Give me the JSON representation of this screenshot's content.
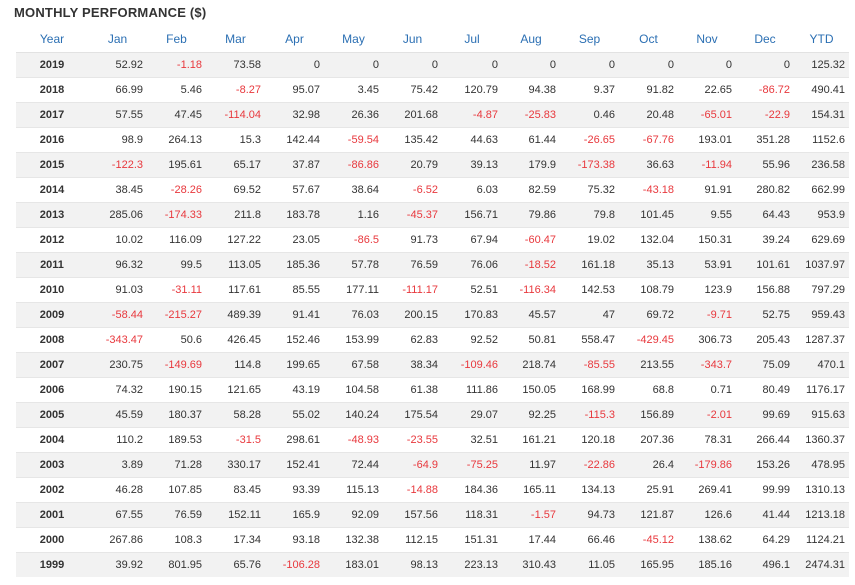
{
  "title": "MONTHLY PERFORMANCE ($)",
  "colors": {
    "header": "#2b6fb3",
    "negative": "#e8383d",
    "stripe": "#f2f2f2"
  },
  "headers": [
    "Year",
    "Jan",
    "Feb",
    "Mar",
    "Apr",
    "May",
    "Jun",
    "Jul",
    "Aug",
    "Sep",
    "Oct",
    "Nov",
    "Dec",
    "YTD"
  ],
  "rows": [
    [
      "2019",
      "52.92",
      "-1.18",
      "73.58",
      "0",
      "0",
      "0",
      "0",
      "0",
      "0",
      "0",
      "0",
      "0",
      "125.32"
    ],
    [
      "2018",
      "66.99",
      "5.46",
      "-8.27",
      "95.07",
      "3.45",
      "75.42",
      "120.79",
      "94.38",
      "9.37",
      "91.82",
      "22.65",
      "-86.72",
      "490.41"
    ],
    [
      "2017",
      "57.55",
      "47.45",
      "-114.04",
      "32.98",
      "26.36",
      "201.68",
      "-4.87",
      "-25.83",
      "0.46",
      "20.48",
      "-65.01",
      "-22.9",
      "154.31"
    ],
    [
      "2016",
      "98.9",
      "264.13",
      "15.3",
      "142.44",
      "-59.54",
      "135.42",
      "44.63",
      "61.44",
      "-26.65",
      "-67.76",
      "193.01",
      "351.28",
      "1152.6"
    ],
    [
      "2015",
      "-122.3",
      "195.61",
      "65.17",
      "37.87",
      "-86.86",
      "20.79",
      "39.13",
      "179.9",
      "-173.38",
      "36.63",
      "-11.94",
      "55.96",
      "236.58"
    ],
    [
      "2014",
      "38.45",
      "-28.26",
      "69.52",
      "57.67",
      "38.64",
      "-6.52",
      "6.03",
      "82.59",
      "75.32",
      "-43.18",
      "91.91",
      "280.82",
      "662.99"
    ],
    [
      "2013",
      "285.06",
      "-174.33",
      "211.8",
      "183.78",
      "1.16",
      "-45.37",
      "156.71",
      "79.86",
      "79.8",
      "101.45",
      "9.55",
      "64.43",
      "953.9"
    ],
    [
      "2012",
      "10.02",
      "116.09",
      "127.22",
      "23.05",
      "-86.5",
      "91.73",
      "67.94",
      "-60.47",
      "19.02",
      "132.04",
      "150.31",
      "39.24",
      "629.69"
    ],
    [
      "2011",
      "96.32",
      "99.5",
      "113.05",
      "185.36",
      "57.78",
      "76.59",
      "76.06",
      "-18.52",
      "161.18",
      "35.13",
      "53.91",
      "101.61",
      "1037.97"
    ],
    [
      "2010",
      "91.03",
      "-31.11",
      "117.61",
      "85.55",
      "177.11",
      "-111.17",
      "52.51",
      "-116.34",
      "142.53",
      "108.79",
      "123.9",
      "156.88",
      "797.29"
    ],
    [
      "2009",
      "-58.44",
      "-215.27",
      "489.39",
      "91.41",
      "76.03",
      "200.15",
      "170.83",
      "45.57",
      "47",
      "69.72",
      "-9.71",
      "52.75",
      "959.43"
    ],
    [
      "2008",
      "-343.47",
      "50.6",
      "426.45",
      "152.46",
      "153.99",
      "62.83",
      "92.52",
      "50.81",
      "558.47",
      "-429.45",
      "306.73",
      "205.43",
      "1287.37"
    ],
    [
      "2007",
      "230.75",
      "-149.69",
      "114.8",
      "199.65",
      "67.58",
      "38.34",
      "-109.46",
      "218.74",
      "-85.55",
      "213.55",
      "-343.7",
      "75.09",
      "470.1"
    ],
    [
      "2006",
      "74.32",
      "190.15",
      "121.65",
      "43.19",
      "104.58",
      "61.38",
      "111.86",
      "150.05",
      "168.99",
      "68.8",
      "0.71",
      "80.49",
      "1176.17"
    ],
    [
      "2005",
      "45.59",
      "180.37",
      "58.28",
      "55.02",
      "140.24",
      "175.54",
      "29.07",
      "92.25",
      "-115.3",
      "156.89",
      "-2.01",
      "99.69",
      "915.63"
    ],
    [
      "2004",
      "110.2",
      "189.53",
      "-31.5",
      "298.61",
      "-48.93",
      "-23.55",
      "32.51",
      "161.21",
      "120.18",
      "207.36",
      "78.31",
      "266.44",
      "1360.37"
    ],
    [
      "2003",
      "3.89",
      "71.28",
      "330.17",
      "152.41",
      "72.44",
      "-64.9",
      "-75.25",
      "11.97",
      "-22.86",
      "26.4",
      "-179.86",
      "153.26",
      "478.95"
    ],
    [
      "2002",
      "46.28",
      "107.85",
      "83.45",
      "93.39",
      "115.13",
      "-14.88",
      "184.36",
      "165.11",
      "134.13",
      "25.91",
      "269.41",
      "99.99",
      "1310.13"
    ],
    [
      "2001",
      "67.55",
      "76.59",
      "152.11",
      "165.9",
      "92.09",
      "157.56",
      "118.31",
      "-1.57",
      "94.73",
      "121.87",
      "126.6",
      "41.44",
      "1213.18"
    ],
    [
      "2000",
      "267.86",
      "108.3",
      "17.34",
      "93.18",
      "132.38",
      "112.15",
      "151.31",
      "17.44",
      "66.46",
      "-45.12",
      "138.62",
      "64.29",
      "1124.21"
    ],
    [
      "1999",
      "39.92",
      "801.95",
      "65.76",
      "-106.28",
      "183.01",
      "98.13",
      "223.13",
      "310.43",
      "11.05",
      "165.95",
      "185.16",
      "496.1",
      "2474.31"
    ]
  ]
}
